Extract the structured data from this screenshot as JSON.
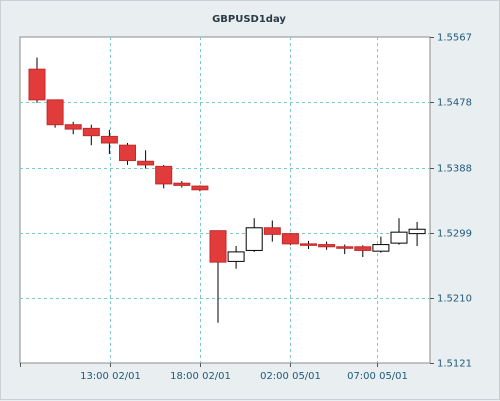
{
  "chart_data": {
    "type": "candlestick",
    "title": "GBPUSD1day",
    "ylim": [
      1.5121,
      1.5567
    ],
    "y_ticks": [
      "1.5567",
      "1.5478",
      "1.5388",
      "1.5299",
      "1.5210",
      "1.5121"
    ],
    "x_ticks": [
      "13:00 02/01",
      "18:00 02/01",
      "02:00 05/01",
      "07:00 05/01"
    ],
    "grid": true,
    "colors": {
      "bull_fill": "#ffffff",
      "bear_fill": "#e23b3b",
      "bear_stroke": "#c22a2a",
      "outline": "#000000",
      "grid": "#7fc9c9",
      "plot_bg": "#ffffff",
      "page_bg": "#e9eef1",
      "axis_text": "#1f5a7a"
    },
    "candles": [
      {
        "open": 1.5523,
        "high": 1.5539,
        "low": 1.5477,
        "close": 1.5481
      },
      {
        "open": 1.5481,
        "high": 1.5481,
        "low": 1.5443,
        "close": 1.5447
      },
      {
        "open": 1.5447,
        "high": 1.5451,
        "low": 1.5434,
        "close": 1.5441
      },
      {
        "open": 1.5442,
        "high": 1.5447,
        "low": 1.5419,
        "close": 1.5432
      },
      {
        "open": 1.5431,
        "high": 1.544,
        "low": 1.5407,
        "close": 1.5422
      },
      {
        "open": 1.5419,
        "high": 1.5422,
        "low": 1.5392,
        "close": 1.5398
      },
      {
        "open": 1.5397,
        "high": 1.5412,
        "low": 1.5387,
        "close": 1.5392
      },
      {
        "open": 1.539,
        "high": 1.5392,
        "low": 1.536,
        "close": 1.5366
      },
      {
        "open": 1.5367,
        "high": 1.537,
        "low": 1.5361,
        "close": 1.5364
      },
      {
        "open": 1.5363,
        "high": 1.5364,
        "low": 1.5356,
        "close": 1.5358
      },
      {
        "open": 1.5302,
        "high": 1.5302,
        "low": 1.5176,
        "close": 1.5259
      },
      {
        "open": 1.526,
        "high": 1.5281,
        "low": 1.525,
        "close": 1.5273
      },
      {
        "open": 1.5275,
        "high": 1.5319,
        "low": 1.5273,
        "close": 1.5306
      },
      {
        "open": 1.5306,
        "high": 1.5316,
        "low": 1.5287,
        "close": 1.5297
      },
      {
        "open": 1.5298,
        "high": 1.5299,
        "low": 1.5282,
        "close": 1.5284
      },
      {
        "open": 1.5284,
        "high": 1.5288,
        "low": 1.5277,
        "close": 1.5282
      },
      {
        "open": 1.5283,
        "high": 1.5287,
        "low": 1.5276,
        "close": 1.528
      },
      {
        "open": 1.528,
        "high": 1.5283,
        "low": 1.527,
        "close": 1.5278
      },
      {
        "open": 1.528,
        "high": 1.5282,
        "low": 1.5266,
        "close": 1.5275
      },
      {
        "open": 1.5274,
        "high": 1.5294,
        "low": 1.5272,
        "close": 1.5283
      },
      {
        "open": 1.5285,
        "high": 1.5319,
        "low": 1.5283,
        "close": 1.53
      },
      {
        "open": 1.5298,
        "high": 1.5314,
        "low": 1.5281,
        "close": 1.5304
      }
    ]
  }
}
